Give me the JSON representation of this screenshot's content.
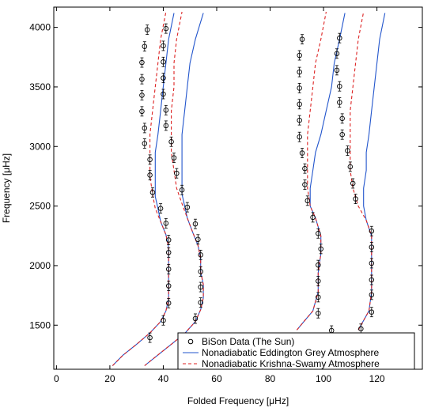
{
  "chart_data": {
    "type": "scatter",
    "title": "",
    "xlabel": "Folded Frequency [μHz]",
    "ylabel": "Frequency [μHz]",
    "xlim": [
      -1,
      137
    ],
    "ylim": [
      1130,
      4170
    ],
    "xticks": [
      0,
      20,
      40,
      60,
      80,
      100,
      120
    ],
    "yticks": [
      1500,
      2000,
      2500,
      3000,
      3500,
      4000
    ],
    "grid": false,
    "legend_position": "bottom-right",
    "series": [
      {
        "name": "BiSon Data (The Sun)",
        "kind": "points",
        "marker": "circle",
        "color": "#000000",
        "groups": [
          [
            [
              35,
              1395
            ],
            [
              40,
              1540
            ],
            [
              42,
              1685
            ],
            [
              42,
              1830
            ],
            [
              42,
              1970
            ],
            [
              42,
              2110
            ],
            [
              42,
              2215
            ],
            [
              41,
              2355
            ],
            [
              39,
              2480
            ],
            [
              36,
              2615
            ],
            [
              35,
              2760
            ],
            [
              35,
              2890
            ],
            [
              33,
              3025
            ],
            [
              33,
              3155
            ],
            [
              32,
              3295
            ],
            [
              32,
              3430
            ],
            [
              32,
              3565
            ],
            [
              32,
              3705
            ],
            [
              33,
              3840
            ],
            [
              34,
              3980
            ]
          ],
          [
            [
              52,
              1555
            ],
            [
              54,
              1690
            ],
            [
              54,
              1820
            ],
            [
              54,
              1950
            ],
            [
              54,
              2090
            ],
            [
              53,
              2220
            ],
            [
              52,
              2350
            ],
            [
              49,
              2490
            ],
            [
              47,
              2635
            ],
            [
              45,
              2775
            ],
            [
              44,
              2905
            ],
            [
              43,
              3040
            ],
            [
              41,
              3175
            ],
            [
              41,
              3305
            ],
            [
              40,
              3440
            ],
            [
              40,
              3575
            ],
            [
              40,
              3710
            ],
            [
              40,
              3845
            ],
            [
              41,
              3990
            ]
          ],
          [
            [
              103,
              1455
            ],
            [
              98,
              1600
            ],
            [
              98,
              1735
            ],
            [
              98,
              1870
            ],
            [
              98,
              2005
            ],
            [
              99,
              2140
            ],
            [
              98,
              2270
            ],
            [
              96,
              2405
            ],
            [
              94,
              2545
            ],
            [
              93,
              2680
            ],
            [
              93,
              2815
            ],
            [
              92,
              2945
            ],
            [
              91,
              3080
            ],
            [
              91,
              3220
            ],
            [
              91,
              3355
            ],
            [
              91,
              3490
            ],
            [
              91,
              3625
            ],
            [
              91,
              3765
            ],
            [
              92,
              3900
            ]
          ],
          [
            [
              114,
              1470
            ],
            [
              118,
              1610
            ],
            [
              118,
              1755
            ],
            [
              118,
              1880
            ],
            [
              118,
              2020
            ],
            [
              118,
              2155
            ],
            [
              118,
              2290
            ],
            [
              112,
              2560
            ],
            [
              111,
              2690
            ],
            [
              110,
              2830
            ],
            [
              109,
              2965
            ],
            [
              107,
              3100
            ],
            [
              107,
              3235
            ],
            [
              106,
              3370
            ],
            [
              106,
              3505
            ],
            [
              105,
              3640
            ],
            [
              105,
              3780
            ],
            [
              106,
              3910
            ]
          ]
        ]
      },
      {
        "name": "Nonadiabatic Eddington Grey Atmosphere",
        "kind": "line",
        "color": "#2255cc",
        "segments": [
          [
            [
              21,
              1160
            ],
            [
              25,
              1250
            ],
            [
              30,
              1340
            ],
            [
              35,
              1435
            ],
            [
              39,
              1530
            ],
            [
              41,
              1620
            ],
            [
              42,
              1720
            ],
            [
              42,
              1830
            ],
            [
              42,
              1930
            ],
            [
              42,
              2040
            ],
            [
              42,
              2150
            ],
            [
              41,
              2260
            ],
            [
              39,
              2370
            ],
            [
              38,
              2480
            ],
            [
              37,
              2580
            ],
            [
              37,
              2700
            ],
            [
              37,
              2820
            ],
            [
              37,
              2950
            ],
            [
              38,
              3100
            ],
            [
              39,
              3300
            ],
            [
              40,
              3500
            ],
            [
              41,
              3700
            ],
            [
              42,
              3900
            ],
            [
              44,
              4120
            ]
          ],
          [
            [
              33,
              1160
            ],
            [
              38,
              1250
            ],
            [
              43,
              1340
            ],
            [
              48,
              1430
            ],
            [
              52,
              1530
            ],
            [
              54,
              1630
            ],
            [
              55,
              1730
            ],
            [
              55,
              1840
            ],
            [
              54,
              1950
            ],
            [
              54,
              2060
            ],
            [
              53,
              2170
            ],
            [
              51,
              2280
            ],
            [
              49,
              2400
            ],
            [
              48,
              2500
            ],
            [
              47,
              2600
            ],
            [
              47,
              2700
            ],
            [
              47,
              2800
            ],
            [
              47,
              2900
            ],
            [
              47,
              3000
            ],
            [
              47,
              3100
            ],
            [
              48,
              3300
            ],
            [
              49,
              3500
            ],
            [
              50,
              3700
            ],
            [
              52,
              3900
            ],
            [
              55,
              4120
            ]
          ],
          [
            [
              90,
              1460
            ],
            [
              96,
              1620
            ],
            [
              98,
              1780
            ],
            [
              98,
              1940
            ],
            [
              99,
              2100
            ],
            [
              99,
              2250
            ],
            [
              97,
              2400
            ],
            [
              95,
              2500
            ],
            [
              95,
              2650
            ],
            [
              96,
              2800
            ],
            [
              97,
              2950
            ],
            [
              99,
              3100
            ],
            [
              101,
              3300
            ],
            [
              103,
              3500
            ],
            [
              104,
              3700
            ],
            [
              106,
              3900
            ],
            [
              108,
              4120
            ]
          ],
          [
            [
              113,
              1460
            ],
            [
              117,
              1620
            ],
            [
              118,
              1780
            ],
            [
              118,
              1940
            ],
            [
              118,
              2100
            ],
            [
              118,
              2250
            ],
            [
              116,
              2380
            ],
            [
              115,
              2500
            ],
            [
              115,
              2650
            ],
            [
              116,
              2800
            ],
            [
              116,
              2950
            ],
            [
              117,
              3100
            ],
            [
              118,
              3300
            ],
            [
              119,
              3500
            ],
            [
              120,
              3700
            ],
            [
              121,
              3900
            ],
            [
              123,
              4120
            ]
          ]
        ]
      },
      {
        "name": "Nonadiabatic Krishna-Swamy Atmosphere",
        "kind": "dashed-line",
        "color": "#dd2222",
        "segments": [
          [
            [
              21,
              1160
            ],
            [
              25,
              1250
            ],
            [
              30,
              1340
            ],
            [
              35,
              1435
            ],
            [
              39,
              1530
            ],
            [
              41,
              1620
            ],
            [
              42,
              1720
            ],
            [
              42,
              1830
            ],
            [
              42,
              1930
            ],
            [
              42,
              2040
            ],
            [
              42,
              2150
            ],
            [
              41,
              2260
            ],
            [
              39,
              2370
            ],
            [
              37,
              2480
            ],
            [
              36,
              2600
            ],
            [
              35,
              2750
            ],
            [
              35,
              2900
            ],
            [
              35,
              3100
            ],
            [
              36,
              3300
            ],
            [
              37,
              3500
            ],
            [
              38,
              3700
            ],
            [
              39,
              3900
            ],
            [
              41,
              4130
            ]
          ],
          [
            [
              33,
              1160
            ],
            [
              38,
              1250
            ],
            [
              43,
              1340
            ],
            [
              48,
              1430
            ],
            [
              52,
              1530
            ],
            [
              54,
              1630
            ],
            [
              55,
              1730
            ],
            [
              55,
              1840
            ],
            [
              54,
              1950
            ],
            [
              54,
              2060
            ],
            [
              53,
              2170
            ],
            [
              51,
              2280
            ],
            [
              49,
              2400
            ],
            [
              47,
              2520
            ],
            [
              45,
              2650
            ],
            [
              44,
              2800
            ],
            [
              43,
              2950
            ],
            [
              43,
              3100
            ],
            [
              43,
              3300
            ],
            [
              44,
              3500
            ],
            [
              44,
              3700
            ],
            [
              45,
              3900
            ],
            [
              47,
              4130
            ]
          ],
          [
            [
              90,
              1460
            ],
            [
              96,
              1620
            ],
            [
              98,
              1780
            ],
            [
              98,
              1940
            ],
            [
              99,
              2100
            ],
            [
              99,
              2250
            ],
            [
              97,
              2400
            ],
            [
              95,
              2500
            ],
            [
              94,
              2650
            ],
            [
              94,
              2800
            ],
            [
              94,
              2950
            ],
            [
              94,
              3100
            ],
            [
              95,
              3300
            ],
            [
              96,
              3500
            ],
            [
              97,
              3700
            ],
            [
              99,
              3900
            ],
            [
              101,
              4130
            ]
          ],
          [
            [
              113,
              1460
            ],
            [
              117,
              1620
            ],
            [
              118,
              1780
            ],
            [
              118,
              1940
            ],
            [
              118,
              2100
            ],
            [
              118,
              2250
            ],
            [
              116,
              2380
            ],
            [
              113,
              2500
            ],
            [
              111,
              2650
            ],
            [
              110,
              2800
            ],
            [
              110,
              2950
            ],
            [
              110,
              3100
            ],
            [
              110,
              3300
            ],
            [
              111,
              3500
            ],
            [
              112,
              3700
            ],
            [
              113,
              3900
            ],
            [
              115,
              4130
            ]
          ]
        ]
      }
    ]
  }
}
